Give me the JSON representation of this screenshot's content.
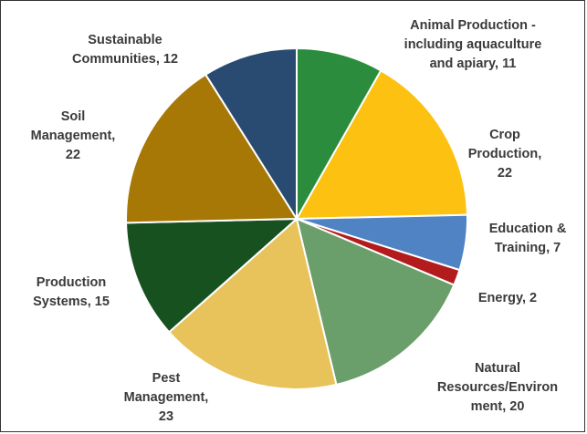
{
  "chart_data": {
    "type": "pie",
    "title": "",
    "categories": [
      "Animal Production - including aquaculture and apiary",
      "Crop Production",
      "Education & Training",
      "Energy",
      "Natural Resources/Environment",
      "Pest Management",
      "Production Systems",
      "Soil Management",
      "Sustainable Communities"
    ],
    "values": [
      11,
      22,
      7,
      2,
      20,
      23,
      15,
      22,
      12
    ],
    "colors": [
      "#2b8c3e",
      "#fcc111",
      "#4f83c3",
      "#b31c1c",
      "#6a9e6a",
      "#e8c35b",
      "#17511f",
      "#a77805",
      "#294b72"
    ],
    "start": "12 o'clock, clockwise",
    "legend": "none (data labels outside slices)",
    "data_labels": [
      [
        "Animal Production -",
        "including aquaculture",
        "and apiary, 11"
      ],
      [
        "Crop",
        "Production,",
        "22"
      ],
      [
        "Education &",
        "Training, 7"
      ],
      [
        "Energy, 2"
      ],
      [
        "Natural",
        "Resources/Environ",
        "ment, 20"
      ],
      [
        "Pest",
        "Management,",
        "23"
      ],
      [
        "Production",
        "Systems, 15"
      ],
      [
        "Soil",
        "Management,",
        "22"
      ],
      [
        "Sustainable",
        "Communities, 12"
      ]
    ]
  }
}
